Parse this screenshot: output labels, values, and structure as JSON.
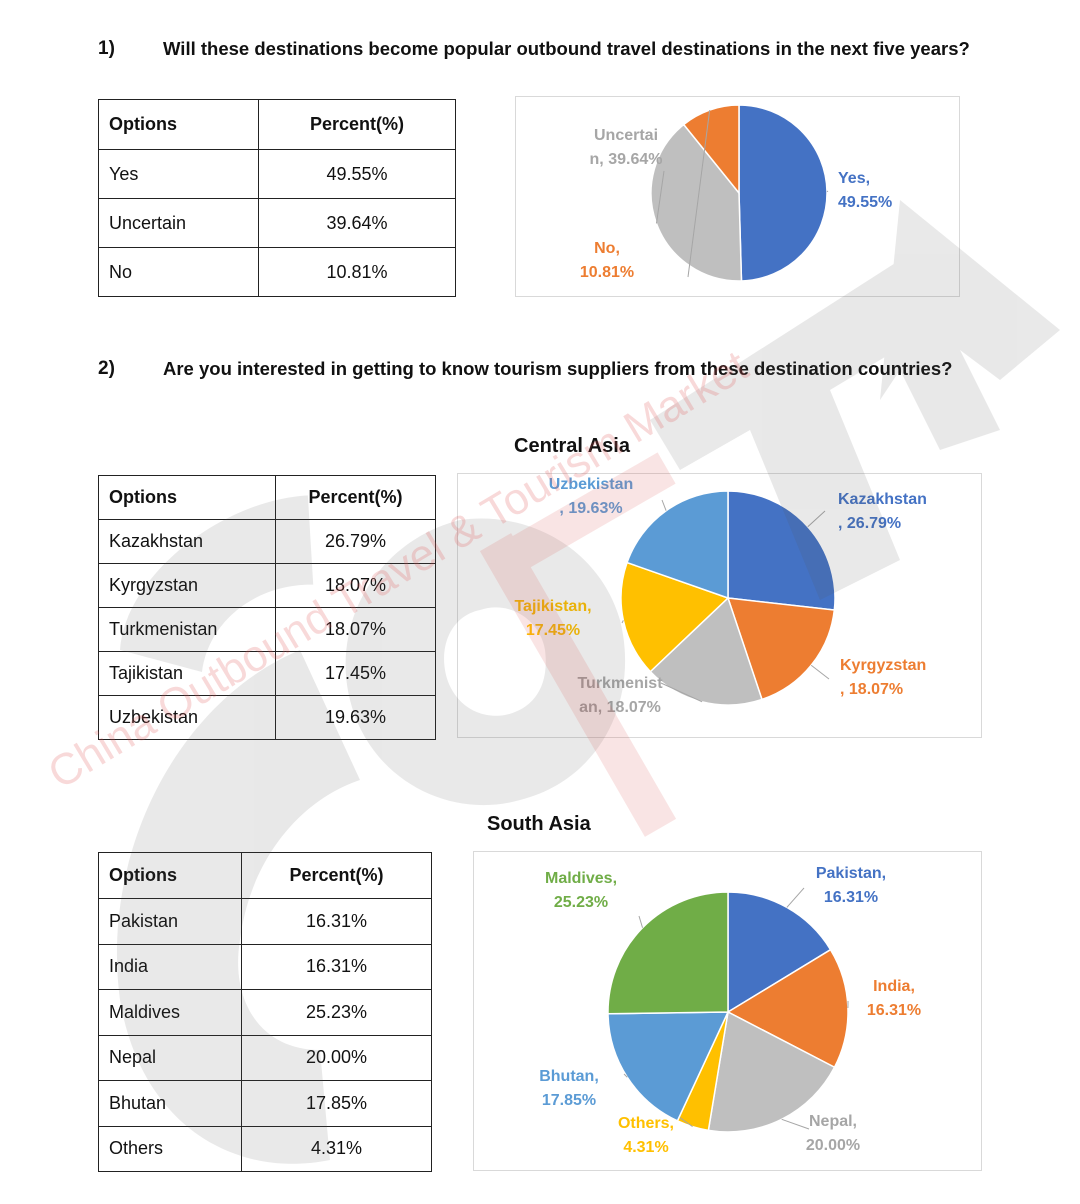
{
  "q1": {
    "number": "1)",
    "question": "Will these destinations become popular outbound travel destinations in the next five years?"
  },
  "q2": {
    "number": "2)",
    "question": "Are you interested in getting to know tourism suppliers from these destination countries?"
  },
  "table_headers": {
    "options": "Options",
    "percent": "Percent(%)"
  },
  "central_asia_title": "Central Asia",
  "south_asia_title": "South Asia",
  "watermark": {
    "text": "China Outbound Travel & Tourism Market",
    "logo": "COTTM"
  },
  "colors": {
    "blue": "#4472c4",
    "orange": "#ed7d31",
    "gray": "#bfbfbf",
    "yellow": "#ffc000",
    "lightblue": "#5b9bd5",
    "green": "#70ad47"
  },
  "chart_data": [
    {
      "type": "pie",
      "id": "q1",
      "categories": [
        "Yes",
        "Uncertain",
        "No"
      ],
      "values": [
        49.55,
        39.64,
        10.81
      ],
      "colors": [
        "#4472c4",
        "#bfbfbf",
        "#ed7d31"
      ],
      "labels": [
        {
          "lines": [
            "Yes,",
            "49.55%"
          ],
          "color": "#4472c4"
        },
        {
          "lines": [
            "Uncertai",
            "n, 39.64%"
          ],
          "color": "#a6a6a6"
        },
        {
          "lines": [
            "No,",
            "10.81%"
          ],
          "color": "#ed7d31"
        }
      ],
      "table": [
        [
          "Yes",
          "49.55%"
        ],
        [
          "Uncertain",
          "39.64%"
        ],
        [
          "No",
          "10.81%"
        ]
      ]
    },
    {
      "type": "pie",
      "id": "central",
      "categories": [
        "Kazakhstan",
        "Kyrgyzstan",
        "Turkmenistan",
        "Tajikistan",
        "Uzbekistan"
      ],
      "values": [
        26.79,
        18.07,
        18.07,
        17.45,
        19.63
      ],
      "colors": [
        "#4472c4",
        "#ed7d31",
        "#bfbfbf",
        "#ffc000",
        "#5b9bd5"
      ],
      "labels": [
        {
          "lines": [
            "Kazakhstan",
            ", 26.79%"
          ],
          "color": "#4472c4"
        },
        {
          "lines": [
            "Kyrgyzstan",
            ", 18.07%"
          ],
          "color": "#ed7d31"
        },
        {
          "lines": [
            "Turkmenist",
            "an, 18.07%"
          ],
          "color": "#a6a6a6"
        },
        {
          "lines": [
            "Tajikistan,",
            "17.45%"
          ],
          "color": "#ffc000"
        },
        {
          "lines": [
            "Uzbekistan",
            ", 19.63%"
          ],
          "color": "#5b9bd5"
        }
      ],
      "table": [
        [
          "Kazakhstan",
          "26.79%"
        ],
        [
          "Kyrgyzstan",
          "18.07%"
        ],
        [
          "Turkmenistan",
          "18.07%"
        ],
        [
          "Tajikistan",
          "17.45%"
        ],
        [
          "Uzbekistan",
          "19.63%"
        ]
      ]
    },
    {
      "type": "pie",
      "id": "south",
      "categories": [
        "Pakistan",
        "India",
        "Nepal",
        "Others",
        "Bhutan",
        "Maldives"
      ],
      "values": [
        16.31,
        16.31,
        20.0,
        4.31,
        17.85,
        25.23
      ],
      "colors": [
        "#4472c4",
        "#ed7d31",
        "#bfbfbf",
        "#ffc000",
        "#5b9bd5",
        "#70ad47"
      ],
      "labels": [
        {
          "lines": [
            "Pakistan,",
            "16.31%"
          ],
          "color": "#4472c4"
        },
        {
          "lines": [
            "India,",
            "16.31%"
          ],
          "color": "#ed7d31"
        },
        {
          "lines": [
            "Nepal,",
            "20.00%"
          ],
          "color": "#a6a6a6"
        },
        {
          "lines": [
            "Others,",
            "4.31%"
          ],
          "color": "#ffc000"
        },
        {
          "lines": [
            "Bhutan,",
            "17.85%"
          ],
          "color": "#5b9bd5"
        },
        {
          "lines": [
            "Maldives,",
            "25.23%"
          ],
          "color": "#70ad47"
        }
      ],
      "table": [
        [
          "Pakistan",
          "16.31%"
        ],
        [
          "India",
          "16.31%"
        ],
        [
          "Maldives",
          "25.23%"
        ],
        [
          "Nepal",
          "20.00%"
        ],
        [
          "Bhutan",
          "17.85%"
        ],
        [
          "Others",
          "4.31%"
        ]
      ]
    }
  ]
}
